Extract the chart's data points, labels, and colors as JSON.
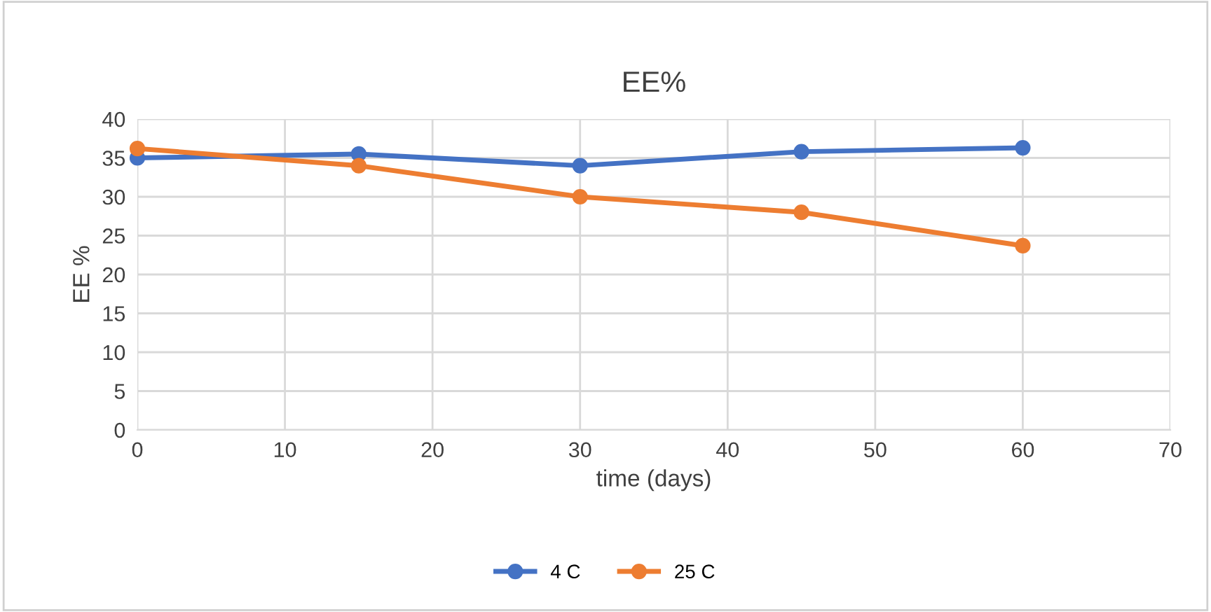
{
  "chart_data": {
    "type": "line",
    "title": "EE%",
    "xlabel": "time (days)",
    "ylabel": "EE %",
    "x": [
      0,
      15,
      30,
      45,
      60
    ],
    "series": [
      {
        "name": "4 C",
        "color": "#4472c4",
        "values": [
          35,
          35.5,
          34,
          35.8,
          36.3
        ]
      },
      {
        "name": "25 C",
        "color": "#ed7d31",
        "values": [
          36.2,
          34,
          30,
          28,
          23.7
        ]
      }
    ],
    "xlim": [
      0,
      70
    ],
    "xticks": [
      0,
      10,
      20,
      30,
      40,
      50,
      60,
      70
    ],
    "ylim": [
      0,
      40
    ],
    "yticks": [
      0,
      5,
      10,
      15,
      20,
      25,
      30,
      35,
      40
    ],
    "grid": true,
    "legend": "bottom",
    "marker": "circle",
    "line_style": "solid"
  }
}
